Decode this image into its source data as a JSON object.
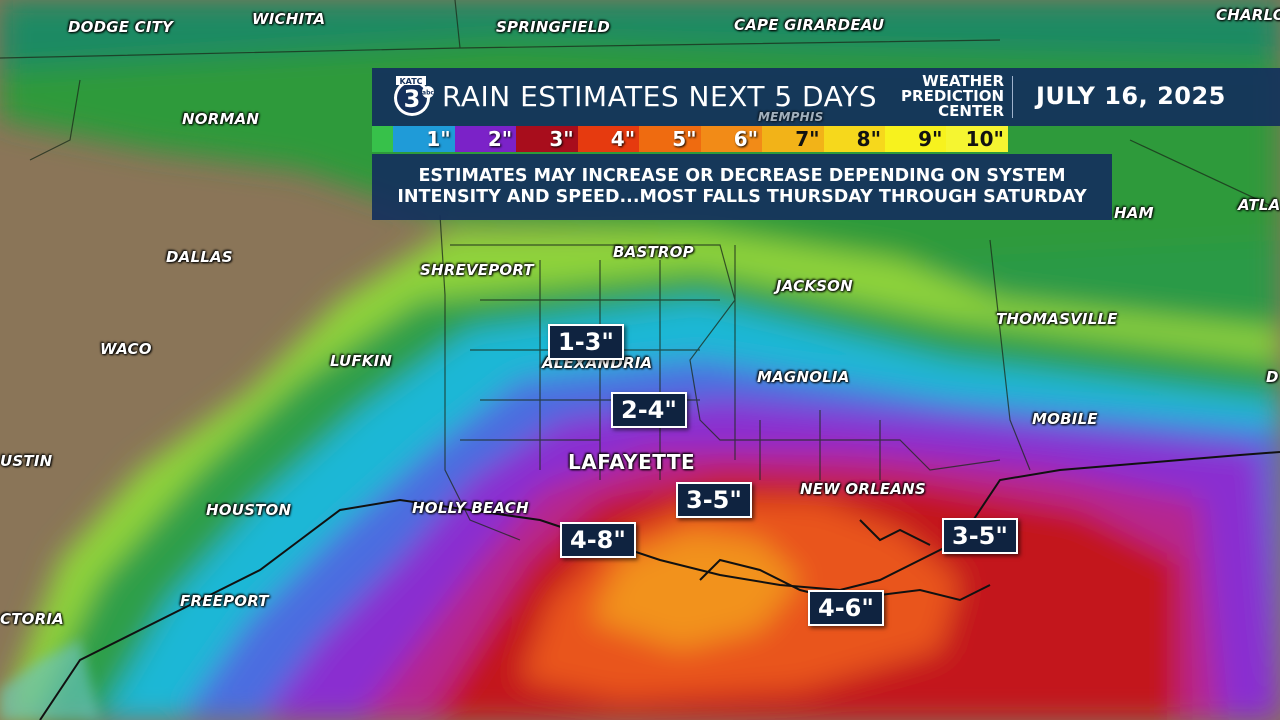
{
  "header": {
    "logo_alt": "KATC 3",
    "title": "RAIN ESTIMATES NEXT 5 DAYS",
    "source_lines": [
      "WEATHER",
      "PREDICTION",
      "CENTER"
    ],
    "date": "JULY 16, 2025"
  },
  "scale": [
    {
      "label": "",
      "color": "#37c14a"
    },
    {
      "label": "1\"",
      "color": "#1f9bd8"
    },
    {
      "label": "2\"",
      "color": "#7b22c8"
    },
    {
      "label": "3\"",
      "color": "#a80d1c"
    },
    {
      "label": "4\"",
      "color": "#e63a0f"
    },
    {
      "label": "5\"",
      "color": "#ef6b10"
    },
    {
      "label": "6\"",
      "color": "#f28b17"
    },
    {
      "label": "7\"",
      "color": "#f2b318"
    },
    {
      "label": "8\"",
      "color": "#f6d81c"
    },
    {
      "label": "9\"",
      "color": "#f7f21e"
    },
    {
      "label": "10\"",
      "color": "#f5f531"
    }
  ],
  "note": {
    "line1": "ESTIMATES MAY INCREASE OR DECREASE DEPENDING ON SYSTEM",
    "line2": "INTENSITY AND SPEED...MOST FALLS THURSDAY THROUGH SATURDAY"
  },
  "cities": {
    "dodge_city": "DODGE CITY",
    "wichita": "WICHITA",
    "springfield": "SPRINGFIELD",
    "cape_girardeau": "CAPE GIRARDEAU",
    "charlotte": "CHARLO",
    "norman": "NORMAN",
    "dallas": "DALLAS",
    "shreveport": "SHREVEPORT",
    "bastrop": "BASTROP",
    "jackson": "JACKSON",
    "thomasville": "THOMASVILLE",
    "birmingham": "HAM",
    "atlanta": "ATLA",
    "waco": "WACO",
    "lufkin": "LUFKIN",
    "alexandria": "ALEXANDRIA",
    "magnolia": "MAGNOLIA",
    "mobile": "MOBILE",
    "austin": "USTIN",
    "lafayette": "LAFAYETTE",
    "new_orleans": "NEW ORLEANS",
    "houston": "HOUSTON",
    "holly_beach": "HOLLY BEACH",
    "freeport": "FREEPORT",
    "victoria": "CTORIA",
    "memphis": "MEMPHIS",
    "d_edge": "D"
  },
  "estimates": {
    "north": "1-3\"",
    "central": "2-4\"",
    "south_central": "3-5\"",
    "southwest": "4-8\"",
    "southeast": "3-5\"",
    "gulf": "4-6\""
  }
}
